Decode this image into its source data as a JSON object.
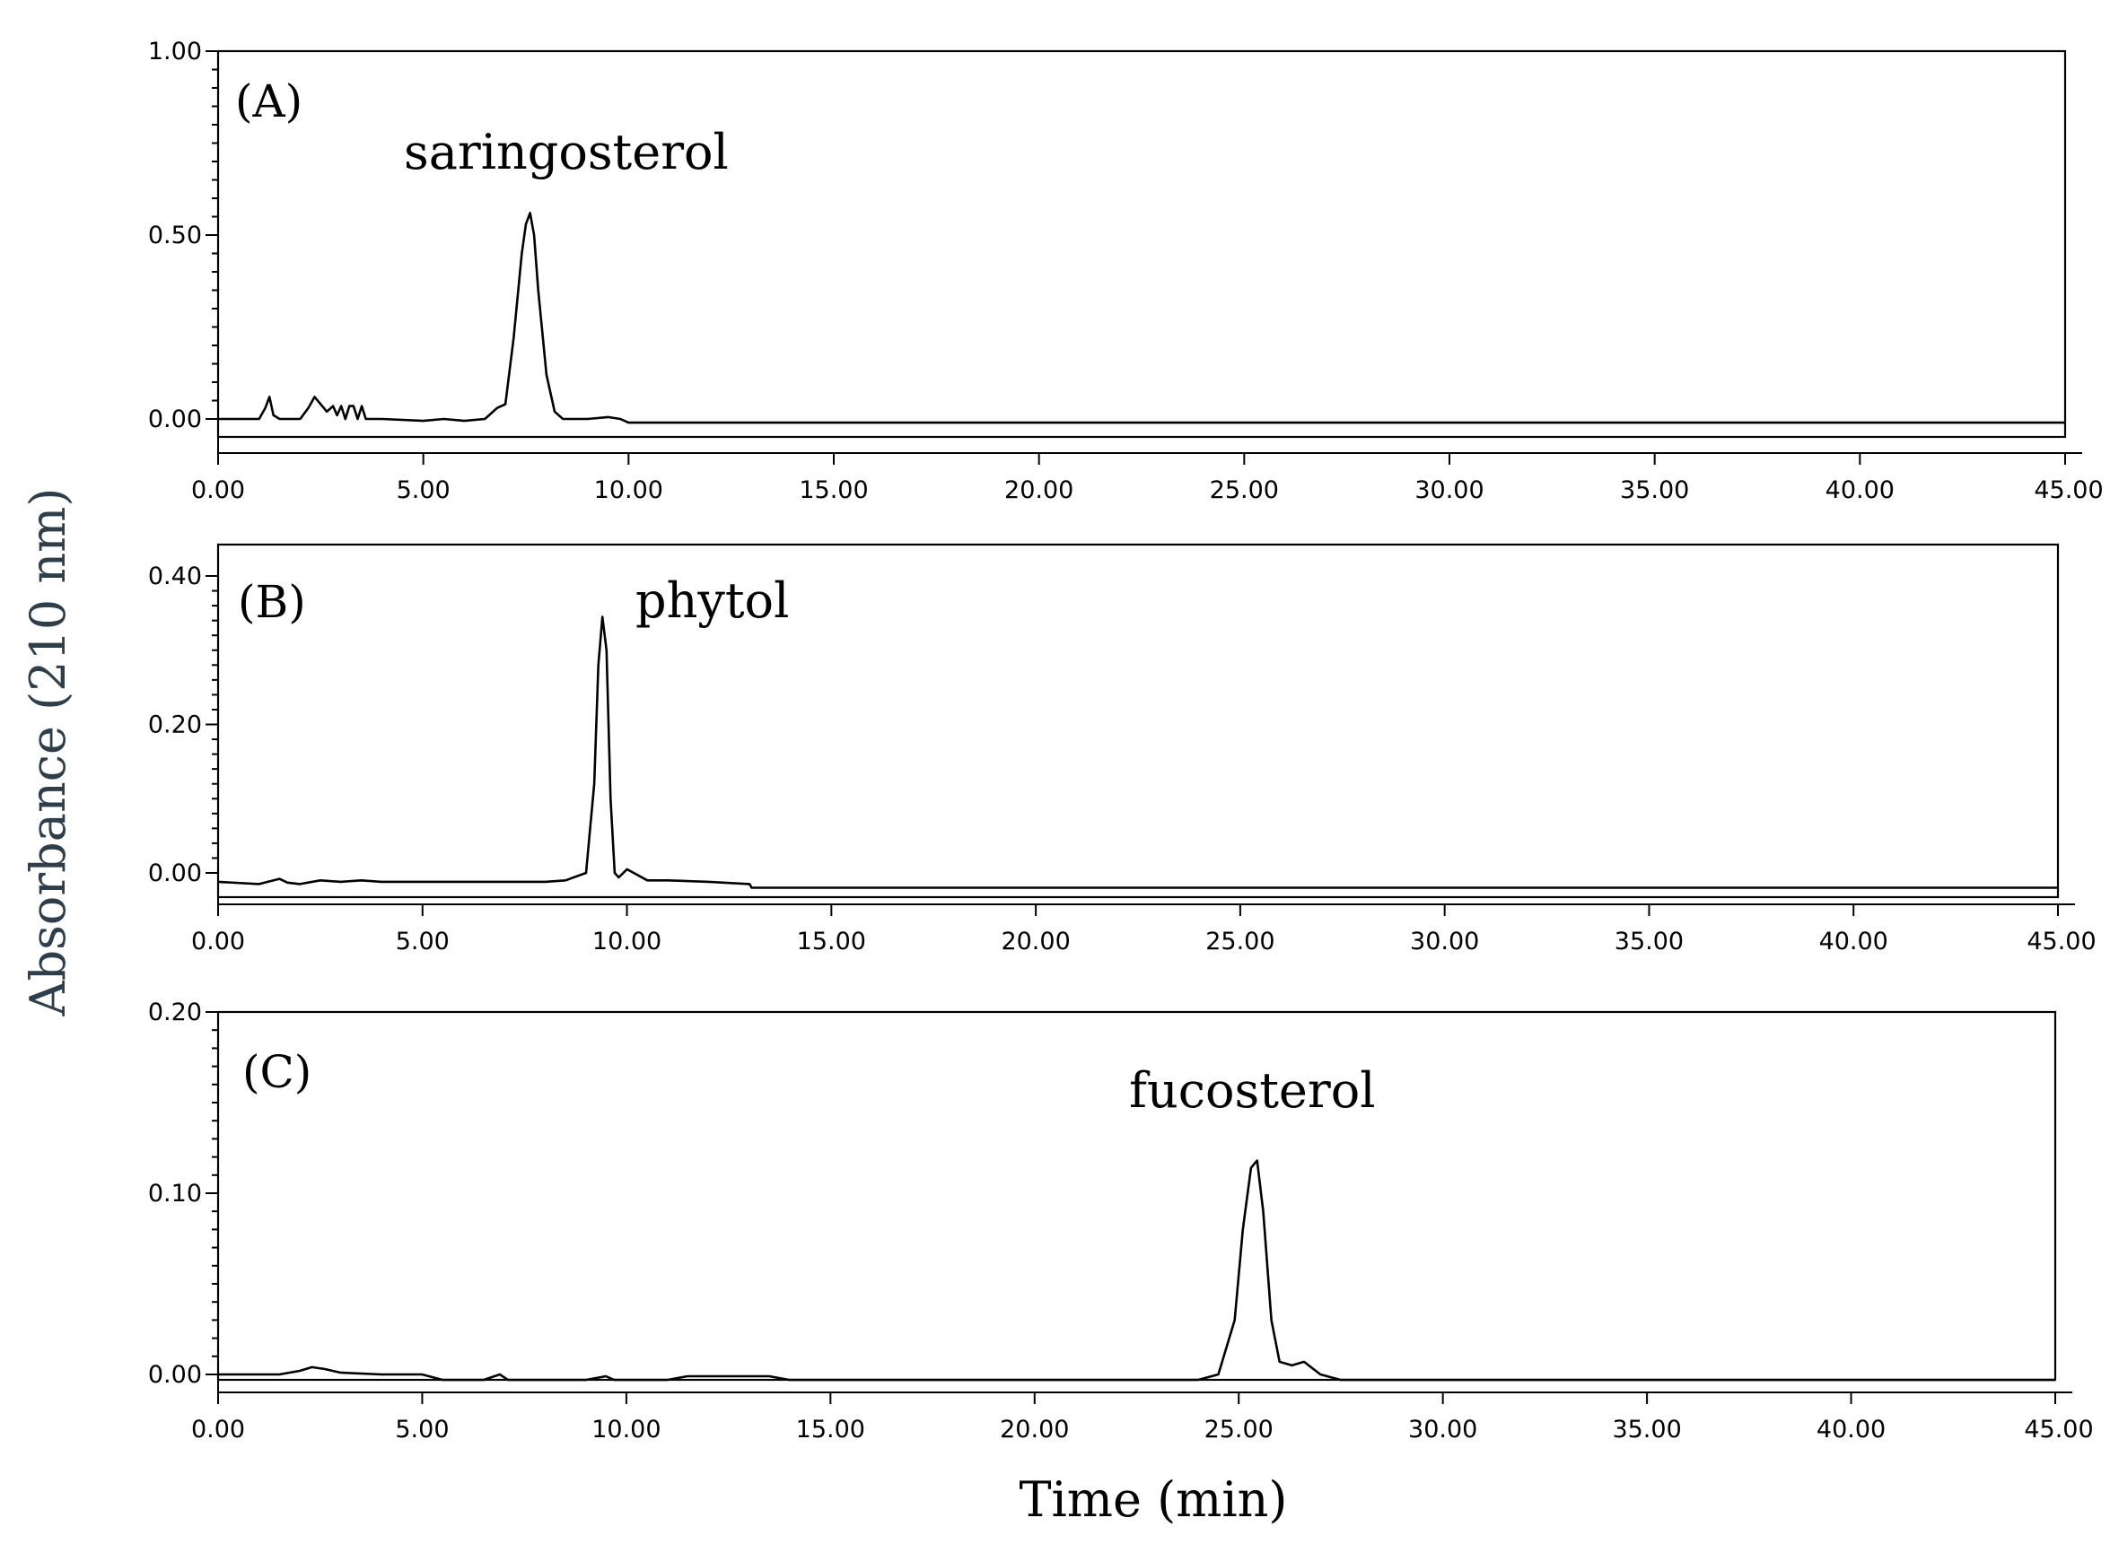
{
  "chart_data": [
    {
      "type": "line",
      "panel_label": "(A)",
      "x_tick_labels": [
        "0.00",
        "5.00",
        "10.00",
        "15.00",
        "20.00",
        "25.00",
        "30.00",
        "35.00",
        "40.00",
        "45.00"
      ],
      "y_tick_labels": [
        "0.00",
        "0.50",
        "1.00"
      ],
      "xlim": [
        0,
        45
      ],
      "ylim": [
        0,
        1.0
      ],
      "annotations": [
        {
          "text": "saringosterol",
          "x": 7.6,
          "y": 0.56
        }
      ],
      "series": [
        {
          "x": [
            0.0,
            1.0,
            1.15,
            1.25,
            1.35,
            1.5,
            2.0,
            2.2,
            2.35,
            2.5,
            2.65,
            2.8,
            2.9,
            3.0,
            3.1,
            3.2,
            3.3,
            3.4,
            3.5,
            3.6,
            4.0,
            5.0,
            5.5,
            6.0,
            6.5,
            6.8,
            7.0,
            7.2,
            7.4,
            7.5,
            7.6,
            7.7,
            7.8,
            8.0,
            8.2,
            8.4,
            9.0,
            9.5,
            9.8,
            10.0,
            45.0
          ],
          "y": [
            0.0,
            0.0,
            0.03,
            0.06,
            0.01,
            0.0,
            0.0,
            0.03,
            0.06,
            0.04,
            0.02,
            0.035,
            0.01,
            0.035,
            0.0,
            0.035,
            0.035,
            0.0,
            0.035,
            0.0,
            0.0,
            -0.005,
            0.0,
            -0.005,
            0.0,
            0.03,
            0.04,
            0.22,
            0.45,
            0.53,
            0.56,
            0.5,
            0.35,
            0.12,
            0.02,
            0.0,
            0.0,
            0.005,
            0.0,
            -0.01,
            -0.01
          ]
        }
      ]
    },
    {
      "type": "line",
      "panel_label": "(B)",
      "x_tick_labels": [
        "0.00",
        "5.00",
        "10.00",
        "15.00",
        "20.00",
        "25.00",
        "30.00",
        "35.00",
        "40.00",
        "45.00"
      ],
      "y_tick_labels": [
        "0.00",
        "0.20",
        "0.40"
      ],
      "xlim": [
        0,
        45
      ],
      "ylim": [
        0,
        0.4
      ],
      "annotations": [
        {
          "text": "phytol",
          "x": 9.45,
          "y": 0.35
        }
      ],
      "series": [
        {
          "x": [
            0.0,
            1.0,
            1.5,
            1.7,
            2.0,
            2.5,
            3.0,
            3.5,
            4.0,
            5.0,
            6.0,
            7.0,
            8.0,
            8.5,
            9.0,
            9.2,
            9.3,
            9.4,
            9.5,
            9.6,
            9.7,
            9.8,
            10.0,
            10.5,
            11.0,
            12.0,
            13.0,
            13.05,
            45.0
          ],
          "y": [
            -0.012,
            -0.015,
            -0.008,
            -0.013,
            -0.015,
            -0.01,
            -0.012,
            -0.01,
            -0.012,
            -0.012,
            -0.012,
            -0.012,
            -0.012,
            -0.01,
            0.0,
            0.12,
            0.28,
            0.345,
            0.3,
            0.1,
            0.0,
            -0.006,
            0.005,
            -0.01,
            -0.01,
            -0.012,
            -0.015,
            -0.02,
            -0.02
          ]
        }
      ]
    },
    {
      "type": "line",
      "panel_label": "(C)",
      "x_tick_labels": [
        "0.00",
        "5.00",
        "10.00",
        "15.00",
        "20.00",
        "25.00",
        "30.00",
        "35.00",
        "40.00",
        "45.00"
      ],
      "y_tick_labels": [
        "0.00",
        "0.10",
        "0.20"
      ],
      "xlim": [
        0,
        45
      ],
      "ylim": [
        0,
        0.2
      ],
      "annotations": [
        {
          "text": "fucosterol",
          "x": 25.4,
          "y": 0.118
        }
      ],
      "series": [
        {
          "x": [
            0.0,
            1.5,
            2.0,
            2.3,
            2.6,
            3.0,
            4.0,
            5.0,
            5.5,
            6.5,
            6.9,
            7.1,
            8.0,
            9.0,
            9.5,
            9.7,
            10.0,
            11.0,
            11.5,
            12.5,
            13.5,
            14.0,
            20.0,
            24.0,
            24.5,
            24.9,
            25.1,
            25.3,
            25.45,
            25.6,
            25.8,
            26.0,
            26.3,
            26.6,
            27.0,
            27.5,
            45.0
          ],
          "y": [
            0.0,
            0.0,
            0.002,
            0.004,
            0.003,
            0.001,
            0.0,
            0.0,
            -0.003,
            -0.003,
            0.0,
            -0.003,
            -0.003,
            -0.003,
            -0.001,
            -0.003,
            -0.003,
            -0.003,
            -0.001,
            -0.001,
            -0.001,
            -0.003,
            -0.003,
            -0.003,
            0.0,
            0.03,
            0.08,
            0.114,
            0.118,
            0.09,
            0.03,
            0.007,
            0.005,
            0.007,
            0.0,
            -0.003,
            -0.003
          ]
        }
      ]
    }
  ],
  "axes": {
    "ylabel": "Absorbance (210 nm)",
    "xlabel": "Time (min)"
  },
  "colors": {
    "line": "#000000",
    "background": "#ffffff",
    "ylabel": "#2f3e4b"
  }
}
